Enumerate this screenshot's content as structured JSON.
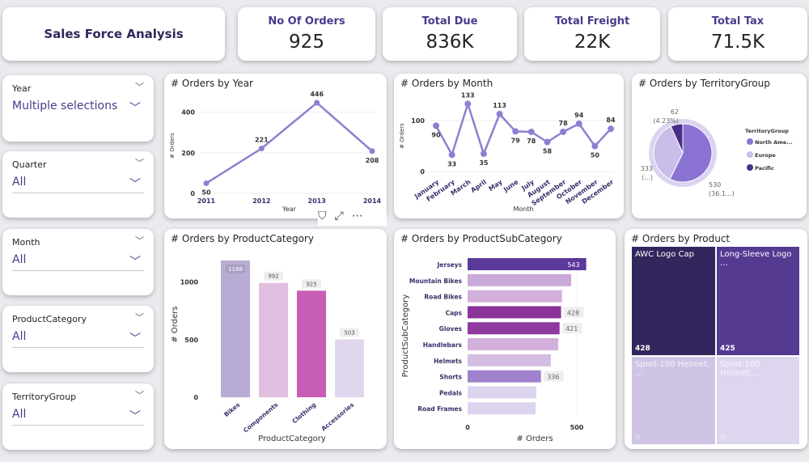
{
  "header": {
    "title": "Sales Force Analysis"
  },
  "kpis": [
    {
      "label": "No Of Orders",
      "value": "925"
    },
    {
      "label": "Total Due",
      "value": "836K"
    },
    {
      "label": "Total Freight",
      "value": "22K"
    },
    {
      "label": "Total Tax",
      "value": "71.5K"
    }
  ],
  "slicers": [
    {
      "label": "Year",
      "value": "Multiple selections"
    },
    {
      "label": "Quarter",
      "value": "All"
    },
    {
      "label": "Month",
      "value": "All"
    },
    {
      "label": "ProductCategory",
      "value": "All"
    },
    {
      "label": "TerritoryGroup",
      "value": "All"
    }
  ],
  "colors": {
    "accent": "#4b3a8c",
    "line": "#8f7fd1"
  },
  "chart_data": [
    {
      "type": "line",
      "title": "# Orders by Year",
      "xlabel": "Year",
      "ylabel": "# Orders",
      "categories": [
        "2011",
        "2012",
        "2013",
        "2014"
      ],
      "values": [
        50,
        221,
        446,
        208
      ],
      "yticks": [
        "0",
        "200",
        "400"
      ],
      "ylim": [
        0,
        470
      ]
    },
    {
      "type": "line",
      "title": "# Orders by Month",
      "xlabel": "Month",
      "ylabel": "# Orders",
      "categories": [
        "January",
        "February",
        "March",
        "April",
        "May",
        "June",
        "July",
        "August",
        "September",
        "October",
        "November",
        "December"
      ],
      "values": [
        90,
        33,
        133,
        35,
        113,
        79,
        78,
        58,
        78,
        94,
        50,
        84
      ],
      "yticks": [
        "0",
        "100"
      ],
      "ylim": [
        0,
        140
      ]
    },
    {
      "type": "pie",
      "title": "# Orders by TerritoryGroup",
      "legend_title": "TerritoryGroup",
      "legend": "right",
      "slices": [
        {
          "name": "North Ame...",
          "value": 530,
          "label": "530",
          "pct": "(36.1...)",
          "color": "#8b73d3"
        },
        {
          "name": "Europe",
          "value": 333,
          "label": "333",
          "pct": "(...)",
          "color": "#c9bde9"
        },
        {
          "name": "Pacific",
          "value": 62,
          "label": "62",
          "pct": "(4.23%)",
          "color": "#4a2e8a"
        }
      ]
    },
    {
      "type": "bar",
      "title": "# Orders by ProductCategory",
      "xlabel": "ProductCategory",
      "ylabel": "# Orders",
      "categories": [
        "Bikes",
        "Components",
        "Clothing",
        "Accessories"
      ],
      "values": [
        1188,
        992,
        925,
        503
      ],
      "colors": [
        "#b8acd4",
        "#e2bfe0",
        "#c85db6",
        "#e0d7ee"
      ],
      "yticks": [
        "0",
        "500",
        "1000"
      ],
      "ylim": [
        0,
        1250
      ]
    },
    {
      "type": "bar",
      "orientation": "horizontal",
      "title": "# Orders by ProductSubCategory",
      "xlabel": "# Orders",
      "ylabel": "ProductSubCategory",
      "categories": [
        "Jerseys",
        "Mountain Bikes",
        "Road Bikes",
        "Caps",
        "Gloves",
        "Handlebars",
        "Helmets",
        "Shorts",
        "Pedals",
        "Road Frames"
      ],
      "values": [
        543,
        474,
        432,
        428,
        421,
        415,
        381,
        336,
        315,
        311
      ],
      "labels": [
        "543",
        "",
        "",
        "428",
        "421",
        "",
        "",
        "336",
        "",
        ""
      ],
      "colors": [
        "#5b3a9b",
        "#c8a9d8",
        "#d2b0db",
        "#8a349a",
        "#8e3a9e",
        "#d2b0db",
        "#d4bde0",
        "#a182cc",
        "#ddd5ee",
        "#ddd5ee"
      ],
      "xticks": [
        "0",
        "500"
      ],
      "xlim": [
        0,
        560
      ]
    },
    {
      "type": "treemap",
      "title": "# Orders by Product",
      "items": [
        {
          "name": "AWC Logo Cap",
          "value": "428",
          "color": "#33265c"
        },
        {
          "name": "Long-Sleeve Logo ...",
          "value": "425",
          "color": "#553a92"
        },
        {
          "name": "Sport-100 Helmet, ...",
          "value": "0",
          "color": "#cfc4e6"
        },
        {
          "name": "Sport-100 Helmet,...",
          "value": "0",
          "color": "#ddd6ee"
        }
      ]
    }
  ]
}
